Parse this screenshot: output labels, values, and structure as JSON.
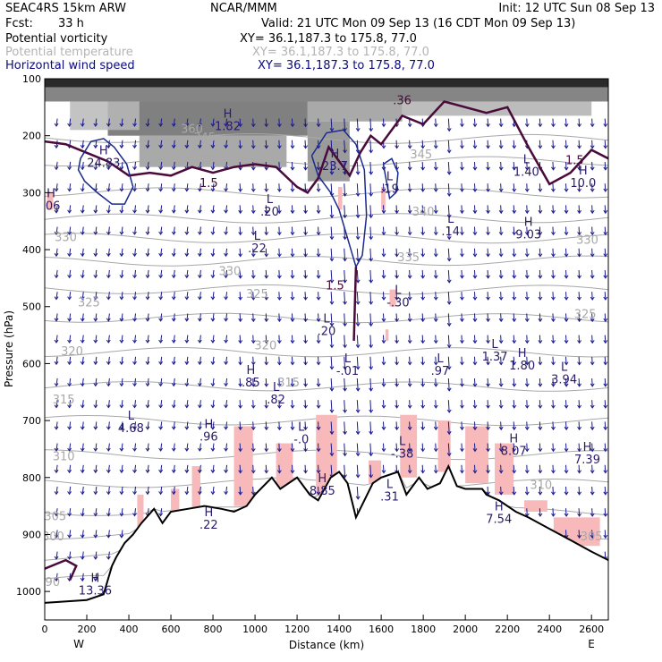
{
  "header": {
    "model": "SEAC4RS 15km ARW",
    "org": "NCAR/MMM",
    "init": "Init: 12 UTC Sun 08 Sep 13",
    "fcst_label": "Fcst:",
    "fcst_value": "33 h",
    "valid": "Valid: 21 UTC Mon 09 Sep 13 (16 CDT Mon 09 Sep 13)",
    "fields": [
      {
        "name": "Potential vorticity",
        "xy": "XY=  36.1,187.3 to 175.8, 77.0",
        "color": "#000000"
      },
      {
        "name": "Potential temperature",
        "xy": "XY=  36.1,187.3 to 175.8, 77.0",
        "color": "#b4b4b4"
      },
      {
        "name": "Horizontal wind speed",
        "xy": "XY=  36.1,187.3 to 175.8, 77.0",
        "color": "#0a0a80"
      }
    ]
  },
  "colors": {
    "theta": "#a8a8a8",
    "wind": "#1a1a8c",
    "pv_contour": "#4a0a3a",
    "pink": "#f7b9b9",
    "terrain": "#000000"
  },
  "chart_data": {
    "type": "cross-section",
    "xlabel": "Distance (km)",
    "ylabel": "Pressure (hPa)",
    "xlim": [
      0,
      2680
    ],
    "ylim": [
      1050,
      100
    ],
    "x_ticks": [
      "0",
      "200",
      "400",
      "600",
      "800",
      "1000",
      "1200",
      "1400",
      "1600",
      "1800",
      "2000",
      "2200",
      "2400",
      "2600"
    ],
    "y_ticks": [
      "100",
      "200",
      "300",
      "400",
      "500",
      "600",
      "700",
      "800",
      "900",
      "1000"
    ],
    "x_end_labels": {
      "left": "W",
      "right": "E"
    },
    "terrain": {
      "x": [
        0,
        200,
        280,
        300,
        320,
        340,
        380,
        420,
        460,
        520,
        560,
        600,
        680,
        760,
        840,
        900,
        960,
        1000,
        1080,
        1120,
        1200,
        1260,
        1300,
        1360,
        1400,
        1440,
        1480,
        1520,
        1560,
        1600,
        1680,
        1720,
        1780,
        1820,
        1880,
        1920,
        1960,
        2000,
        2080,
        2100,
        2160,
        2240,
        2300,
        2400,
        2500,
        2600,
        2680
      ],
      "p": [
        1020,
        1015,
        1005,
        980,
        955,
        940,
        915,
        900,
        880,
        855,
        880,
        860,
        855,
        850,
        855,
        860,
        850,
        830,
        800,
        820,
        800,
        830,
        840,
        800,
        790,
        810,
        870,
        840,
        810,
        800,
        790,
        830,
        800,
        820,
        810,
        780,
        815,
        820,
        820,
        830,
        840,
        860,
        870,
        890,
        910,
        930,
        945
      ]
    },
    "theta_labels": [
      {
        "text": "360",
        "x": 700,
        "p": 195
      },
      {
        "text": "345",
        "x": 760,
        "p": 210
      },
      {
        "text": "345",
        "x": 1790,
        "p": 240
      },
      {
        "text": "340",
        "x": 1800,
        "p": 340
      },
      {
        "text": "335",
        "x": 1730,
        "p": 420
      },
      {
        "text": "330",
        "x": 100,
        "p": 385
      },
      {
        "text": "330",
        "x": 880,
        "p": 445
      },
      {
        "text": "325",
        "x": 1010,
        "p": 485
      },
      {
        "text": "325",
        "x": 210,
        "p": 500
      },
      {
        "text": "320",
        "x": 1050,
        "p": 575
      },
      {
        "text": "320",
        "x": 130,
        "p": 585
      },
      {
        "text": "315",
        "x": 1160,
        "p": 640
      },
      {
        "text": "315",
        "x": 90,
        "p": 670
      },
      {
        "text": "310",
        "x": 90,
        "p": 770
      },
      {
        "text": "305",
        "x": 50,
        "p": 875
      },
      {
        "text": "300",
        "x": 40,
        "p": 910
      },
      {
        "text": "290",
        "x": 20,
        "p": 990
      },
      {
        "text": "325",
        "x": 2570,
        "p": 520
      },
      {
        "text": "330",
        "x": 2580,
        "p": 390
      },
      {
        "text": "310",
        "x": 2360,
        "p": 820
      },
      {
        "text": "305",
        "x": 2600,
        "p": 910
      }
    ],
    "pv_labels": [
      {
        "text": "1.5",
        "x": 780,
        "p": 290
      },
      {
        "text": "1.5",
        "x": 2520,
        "p": 250
      },
      {
        "text": "1.5",
        "x": 1380,
        "p": 470
      },
      {
        "text": ".36",
        "x": 1700,
        "p": 145
      }
    ],
    "extrema": [
      {
        "kind": "H",
        "value": "24.83",
        "x": 280,
        "p": 255
      },
      {
        "kind": "H",
        "value": ".06",
        "x": 30,
        "p": 330
      },
      {
        "kind": "H",
        "value": "1.82",
        "x": 870,
        "p": 190
      },
      {
        "kind": "H",
        "value": "23.7",
        "x": 1380,
        "p": 260
      },
      {
        "kind": "L",
        "value": ".19",
        "x": 1640,
        "p": 300
      },
      {
        "kind": "L",
        "value": ".20",
        "x": 1070,
        "p": 340
      },
      {
        "kind": "L",
        "value": ".22",
        "x": 1010,
        "p": 405
      },
      {
        "kind": "L",
        "value": ".14",
        "x": 1930,
        "p": 375
      },
      {
        "kind": "H",
        "value": "9.03",
        "x": 2300,
        "p": 380
      },
      {
        "kind": "H",
        "value": "10.0",
        "x": 2560,
        "p": 290
      },
      {
        "kind": "L",
        "value": "1.40",
        "x": 2290,
        "p": 270
      },
      {
        "kind": "L",
        "value": "-.30",
        "x": 1680,
        "p": 500
      },
      {
        "kind": "L",
        "value": ".20",
        "x": 1340,
        "p": 550
      },
      {
        "kind": "L",
        "value": "-.01",
        "x": 1440,
        "p": 620
      },
      {
        "kind": "L",
        "value": ".97",
        "x": 1880,
        "p": 620
      },
      {
        "kind": "L",
        "value": "1.37",
        "x": 2140,
        "p": 595
      },
      {
        "kind": "H",
        "value": "1.80",
        "x": 2270,
        "p": 610
      },
      {
        "kind": "L",
        "value": "3.94",
        "x": 2470,
        "p": 635
      },
      {
        "kind": "H",
        "value": ".85",
        "x": 980,
        "p": 640
      },
      {
        "kind": "L",
        "value": ".82",
        "x": 1100,
        "p": 670
      },
      {
        "kind": "L",
        "value": "4.68",
        "x": 410,
        "p": 720
      },
      {
        "kind": "H",
        "value": ".96",
        "x": 780,
        "p": 735
      },
      {
        "kind": "L",
        "value": "-.0",
        "x": 1220,
        "p": 740
      },
      {
        "kind": "L",
        "value": "-.38",
        "x": 1700,
        "p": 765
      },
      {
        "kind": "H",
        "value": "8.07",
        "x": 2230,
        "p": 760
      },
      {
        "kind": "H",
        "value": "7.39",
        "x": 2580,
        "p": 775
      },
      {
        "kind": "H",
        "value": "8.85",
        "x": 1320,
        "p": 830
      },
      {
        "kind": "L",
        "value": ".31",
        "x": 1640,
        "p": 840
      },
      {
        "kind": "H",
        "value": ".22",
        "x": 780,
        "p": 890
      },
      {
        "kind": "H",
        "value": "7.54",
        "x": 2160,
        "p": 880
      },
      {
        "kind": "H",
        "value": "13.36",
        "x": 240,
        "p": 1005
      }
    ],
    "wind_contours": [
      {
        "label": "15",
        "x": [
          170,
          220,
          280,
          330,
          390,
          420,
          380,
          320,
          250,
          190,
          160,
          170
        ],
        "p": [
          240,
          210,
          205,
          220,
          250,
          290,
          320,
          320,
          300,
          280,
          260,
          240
        ]
      },
      {
        "label": "15",
        "x": [
          1270,
          1340,
          1420,
          1480,
          1520,
          1530,
          1510,
          1480,
          1440,
          1400,
          1360,
          1300,
          1270
        ],
        "p": [
          235,
          195,
          190,
          215,
          260,
          340,
          410,
          430,
          380,
          330,
          300,
          270,
          235
        ]
      },
      {
        "label": "20",
        "x": [
          1610,
          1650,
          1680,
          1670,
          1640,
          1610
        ],
        "p": [
          250,
          240,
          265,
          300,
          310,
          250
        ]
      }
    ]
  }
}
